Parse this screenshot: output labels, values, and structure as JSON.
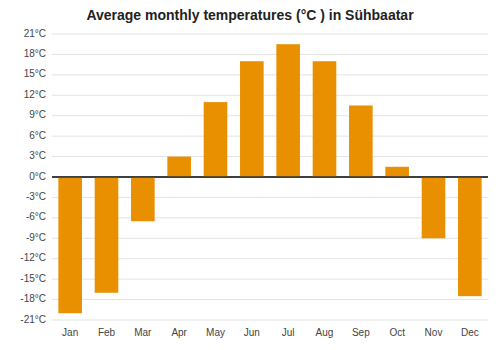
{
  "chart_data": {
    "type": "bar",
    "title": "Average monthly temperatures (°C ) in Sühbaatar",
    "categories": [
      "Jan",
      "Feb",
      "Mar",
      "Apr",
      "May",
      "Jun",
      "Jul",
      "Aug",
      "Sep",
      "Oct",
      "Nov",
      "Dec"
    ],
    "values": [
      -20,
      -17,
      -6.5,
      3,
      11,
      17,
      19.5,
      17,
      10.5,
      1.5,
      -9,
      -17.5
    ],
    "color": "#E89000",
    "ylim": [
      -21,
      21
    ],
    "yticks": [
      {
        "value": -21,
        "label": "-21°C"
      },
      {
        "value": -18,
        "label": "-18°C"
      },
      {
        "value": -15,
        "label": "-15°C"
      },
      {
        "value": -12,
        "label": "-12°C"
      },
      {
        "value": -9,
        "label": "-9°C"
      },
      {
        "value": -6,
        "label": "-6°C"
      },
      {
        "value": -3,
        "label": "-3°C"
      },
      {
        "value": 0,
        "label": "0°C"
      },
      {
        "value": 3,
        "label": "3°C"
      },
      {
        "value": 6,
        "label": "6°C"
      },
      {
        "value": 9,
        "label": "9°C"
      },
      {
        "value": 12,
        "label": "12°C"
      },
      {
        "value": 15,
        "label": "15°C"
      },
      {
        "value": 18,
        "label": "18°C"
      },
      {
        "value": 21,
        "label": "21°C"
      }
    ],
    "grid": true
  }
}
